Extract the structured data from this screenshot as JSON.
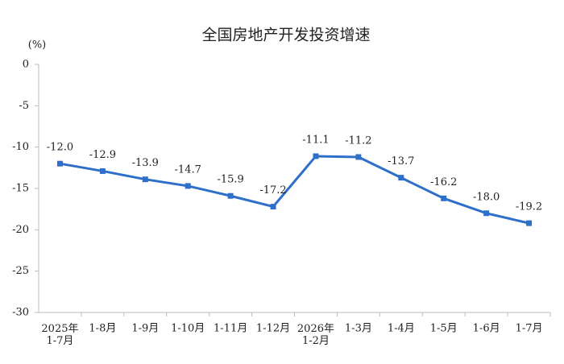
{
  "chart_data": {
    "type": "line",
    "title": "全国房地产开发投资增速",
    "y_label": "(%)",
    "categories": [
      "2025年\n1-7月",
      "1-8月",
      "1-9月",
      "1-10月",
      "1-11月",
      "1-12月",
      "2026年\n1-2月",
      "1-3月",
      "1-4月",
      "1-5月",
      "1-6月",
      "1-7月"
    ],
    "series": [
      {
        "name": "全国房地产开发投资增速",
        "color": "#2e6fc9",
        "values": [
          -12.0,
          -12.9,
          -13.9,
          -14.7,
          -15.9,
          -17.2,
          -11.1,
          -11.2,
          -13.7,
          -16.2,
          -18.0,
          -19.2
        ],
        "value_labels": [
          "-12.0",
          "-12.9",
          "-13.9",
          "-14.7",
          "-15.9",
          "-17.2",
          "-11.1",
          "-11.2",
          "-13.7",
          "-16.2",
          "-18.0",
          "-19.2"
        ]
      }
    ],
    "ylim": [
      -30,
      0
    ],
    "yticks": [
      0,
      -5,
      -10,
      -15,
      -20,
      -25,
      -30
    ],
    "grid": false
  }
}
